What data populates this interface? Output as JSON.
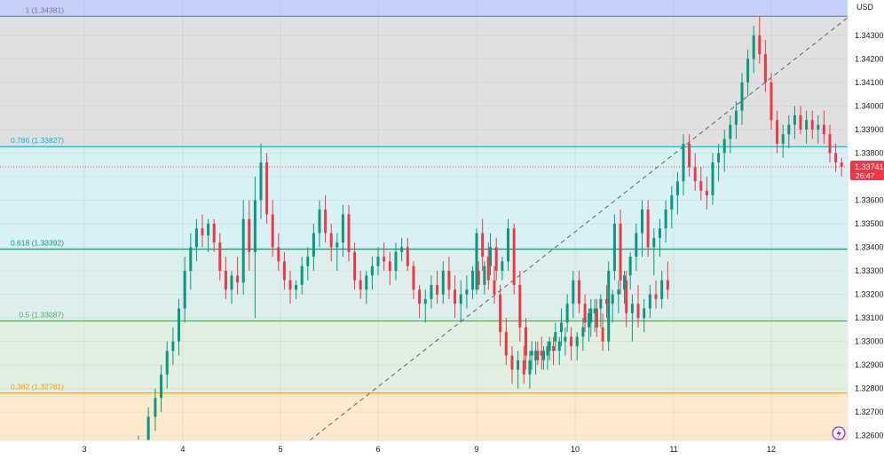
{
  "chart_data": {
    "type": "candlestick",
    "currency_label": "USD",
    "price_axis": {
      "range": [
        1.3258,
        1.3445
      ],
      "ticks": [
        "1.34300",
        "1.34200",
        "1.34100",
        "1.34000",
        "1.33900",
        "1.33800",
        "1.33700",
        "1.33600",
        "1.33500",
        "1.33400",
        "1.33300",
        "1.33200",
        "1.33100",
        "1.33000",
        "1.32900",
        "1.32800",
        "1.32700",
        "1.32600"
      ]
    },
    "time_axis": {
      "ticks": [
        "3",
        "4",
        "5",
        "6",
        "9",
        "10",
        "11",
        "12"
      ]
    },
    "current_price": {
      "value": 1.33741,
      "label": "1.33741",
      "countdown": "26:47",
      "color": "#f23645"
    },
    "fib_levels": [
      {
        "label": "1 (1.34381)",
        "value": 1.34381,
        "line_color": "#787b86",
        "fill": "#e0e0e0"
      },
      {
        "label": "0.786 (1.33827)",
        "value": 1.33827,
        "line_color": "#00bcd4",
        "fill": "#d7f1f5"
      },
      {
        "label": "0.618 (1.33392)",
        "value": 1.33392,
        "line_color": "#089981",
        "fill": "#ddefed"
      },
      {
        "label": "0.5 (1.33087)",
        "value": 1.33087,
        "line_color": "#4caf50",
        "fill": "#e1f0e1"
      },
      {
        "label": "0.382 (1.32781)",
        "value": 1.32781,
        "line_color": "#ff9800",
        "fill": "#fde9cc"
      }
    ],
    "top_band_color": "#c5cff9",
    "trend_line": {
      "from": {
        "day": 5.3,
        "price": 1.3258
      },
      "to": {
        "day": 12.8,
        "price": 1.34381
      }
    },
    "candles": [
      [
        3.55,
        1.3252,
        1.326,
        1.3248,
        1.3258
      ],
      [
        3.65,
        1.3258,
        1.3272,
        1.3255,
        1.3268
      ],
      [
        3.72,
        1.3268,
        1.328,
        1.3262,
        1.3276
      ],
      [
        3.78,
        1.3276,
        1.329,
        1.327,
        1.3286
      ],
      [
        3.84,
        1.3286,
        1.33,
        1.328,
        1.3296
      ],
      [
        3.9,
        1.3296,
        1.3306,
        1.329,
        1.33
      ],
      [
        3.96,
        1.33,
        1.3318,
        1.3294,
        1.3314
      ],
      [
        4.02,
        1.3314,
        1.3336,
        1.3308,
        1.333
      ],
      [
        4.08,
        1.333,
        1.3346,
        1.3322,
        1.334
      ],
      [
        4.14,
        1.334,
        1.3352,
        1.3334,
        1.3348
      ],
      [
        4.2,
        1.3348,
        1.3354,
        1.334,
        1.3345
      ],
      [
        4.26,
        1.3345,
        1.3352,
        1.3338,
        1.335
      ],
      [
        4.32,
        1.335,
        1.3352,
        1.3338,
        1.3342
      ],
      [
        4.38,
        1.3342,
        1.3346,
        1.3326,
        1.333
      ],
      [
        4.44,
        1.333,
        1.3336,
        1.3318,
        1.3322
      ],
      [
        4.5,
        1.3322,
        1.333,
        1.3316,
        1.3328
      ],
      [
        4.56,
        1.3328,
        1.3336,
        1.332,
        1.3325
      ],
      [
        4.62,
        1.3325,
        1.336,
        1.332,
        1.3352
      ],
      [
        4.68,
        1.3352,
        1.336,
        1.333,
        1.3338
      ],
      [
        4.74,
        1.3338,
        1.337,
        1.331,
        1.336
      ],
      [
        4.8,
        1.336,
        1.3384,
        1.3352,
        1.3376
      ],
      [
        4.86,
        1.3376,
        1.338,
        1.335,
        1.3354
      ],
      [
        4.92,
        1.3354,
        1.336,
        1.3336,
        1.334
      ],
      [
        4.98,
        1.334,
        1.3346,
        1.333,
        1.3334
      ],
      [
        5.04,
        1.3334,
        1.3338,
        1.3322,
        1.3326
      ],
      [
        5.1,
        1.3326,
        1.333,
        1.3316,
        1.3322
      ],
      [
        5.16,
        1.3322,
        1.3326,
        1.3318,
        1.3324
      ],
      [
        5.22,
        1.3324,
        1.3336,
        1.332,
        1.3332
      ],
      [
        5.28,
        1.3332,
        1.334,
        1.3326,
        1.3336
      ],
      [
        5.34,
        1.3336,
        1.335,
        1.333,
        1.3346
      ],
      [
        5.4,
        1.3346,
        1.336,
        1.334,
        1.3356
      ],
      [
        5.46,
        1.3356,
        1.3362,
        1.3342,
        1.3346
      ],
      [
        5.52,
        1.3346,
        1.335,
        1.3334,
        1.334
      ],
      [
        5.58,
        1.334,
        1.3346,
        1.333,
        1.3342
      ],
      [
        5.64,
        1.3342,
        1.3358,
        1.3336,
        1.3354
      ],
      [
        5.7,
        1.3354,
        1.3358,
        1.3334,
        1.3338
      ],
      [
        5.76,
        1.3338,
        1.3342,
        1.3322,
        1.3326
      ],
      [
        5.82,
        1.3326,
        1.333,
        1.3318,
        1.3322
      ],
      [
        5.88,
        1.3322,
        1.333,
        1.3316,
        1.3328
      ],
      [
        5.94,
        1.3328,
        1.3336,
        1.3322,
        1.3332
      ],
      [
        6.0,
        1.3332,
        1.334,
        1.3328,
        1.3336
      ],
      [
        6.06,
        1.3336,
        1.3342,
        1.333,
        1.3334
      ],
      [
        6.12,
        1.3334,
        1.3338,
        1.3324,
        1.333
      ],
      [
        6.18,
        1.333,
        1.3342,
        1.3326,
        1.3338
      ],
      [
        6.24,
        1.3338,
        1.3344,
        1.3334,
        1.334
      ],
      [
        6.3,
        1.334,
        1.3344,
        1.333,
        1.3332
      ],
      [
        6.36,
        1.3332,
        1.3334,
        1.3318,
        1.3322
      ],
      [
        6.42,
        1.3322,
        1.3324,
        1.331,
        1.3316
      ],
      [
        6.48,
        1.3316,
        1.3322,
        1.3308,
        1.3318
      ],
      [
        6.54,
        1.3318,
        1.3328,
        1.3314,
        1.3324
      ],
      [
        6.6,
        1.3324,
        1.333,
        1.3316,
        1.332
      ],
      [
        6.66,
        1.332,
        1.3334,
        1.3316,
        1.333
      ],
      [
        6.72,
        1.333,
        1.3336,
        1.3318,
        1.3322
      ],
      [
        6.78,
        1.3322,
        1.3328,
        1.331,
        1.3316
      ],
      [
        6.84,
        1.3316,
        1.3326,
        1.3308,
        1.332
      ],
      [
        6.9,
        1.332,
        1.3328,
        1.3314,
        1.3322
      ],
      [
        6.96,
        1.3322,
        1.3332,
        1.3318,
        1.333
      ],
      [
        7.02,
        1.333,
        1.3334,
        1.3322,
        1.3324
      ],
      [
        7.08,
        1.3324,
        1.3334,
        1.332,
        1.3332
      ],
      [
        7.14,
        1.3332,
        1.3346,
        1.3328,
        1.334
      ],
      [
        7.2,
        1.334,
        1.3344,
        1.3326,
        1.333
      ],
      [
        7.26,
        1.333,
        1.3336,
        1.3326,
        1.3334
      ],
      [
        7.32,
        1.3334,
        1.3352,
        1.333,
        1.3348
      ],
      [
        7.38,
        1.3348,
        1.335,
        1.332,
        1.3324
      ],
      [
        7.44,
        1.3324,
        1.333,
        1.33,
        1.3306
      ],
      [
        7.5,
        1.3306,
        1.331,
        1.3288,
        1.3294
      ],
      [
        7.56,
        1.3294,
        1.33,
        1.3288,
        1.3296
      ],
      [
        7.62,
        1.3296,
        1.33,
        1.329,
        1.3292
      ],
      [
        7.68,
        1.3292,
        1.3298,
        1.3288,
        1.3296
      ],
      [
        7.74,
        1.3296,
        1.3302,
        1.3292,
        1.33
      ],
      [
        7.8,
        1.33,
        1.3308,
        1.3296,
        1.3304
      ],
      [
        7.86,
        1.3304,
        1.3314,
        1.3298,
        1.3308
      ],
      [
        7.92,
        1.3308,
        1.332,
        1.3304,
        1.3316
      ],
      [
        7.98,
        1.3316,
        1.333,
        1.331,
        1.3326
      ],
      [
        8.04,
        1.3326,
        1.333,
        1.3312,
        1.3316
      ],
      [
        8.1,
        1.3316,
        1.332,
        1.3304,
        1.3308
      ],
      [
        8.16,
        1.3308,
        1.3318,
        1.3302,
        1.3314
      ],
      [
        8.22,
        1.3314,
        1.3318,
        1.3302,
        1.3306
      ],
      [
        8.28,
        1.3306,
        1.3312,
        1.3296,
        1.33
      ],
      [
        8.34,
        1.33,
        1.3334,
        1.3296,
        1.333
      ],
      [
        8.4,
        1.333,
        1.3354,
        1.3326,
        1.335
      ],
      [
        8.46,
        1.335,
        1.3356,
        1.332,
        1.3326
      ],
      [
        8.52,
        1.3326,
        1.333,
        1.3306,
        1.3312
      ],
      [
        8.58,
        1.3312,
        1.332,
        1.33,
        1.3316
      ],
      [
        8.64,
        1.3316,
        1.3324,
        1.3306,
        1.331
      ],
      [
        8.7,
        1.331,
        1.3318,
        1.3304,
        1.3314
      ],
      [
        8.76,
        1.3314,
        1.3324,
        1.331,
        1.332
      ],
      [
        8.82,
        1.332,
        1.3326,
        1.3314,
        1.3318
      ],
      [
        8.88,
        1.3318,
        1.333,
        1.3314,
        1.3326
      ],
      [
        8.94,
        1.3326,
        1.3334,
        1.3318,
        1.3322
      ],
      [
        9.0,
        1.3322,
        1.3348,
        1.332,
        1.3346
      ],
      [
        9.06,
        1.3346,
        1.3352,
        1.333,
        1.3336
      ],
      [
        9.12,
        1.3336,
        1.3342,
        1.3322,
        1.3326
      ],
      [
        9.18,
        1.3326,
        1.3332,
        1.3316,
        1.332
      ],
      [
        9.24,
        1.332,
        1.3324,
        1.3298,
        1.3304
      ],
      [
        9.3,
        1.3304,
        1.331,
        1.329,
        1.3294
      ],
      [
        9.36,
        1.3294,
        1.3298,
        1.3282,
        1.3288
      ],
      [
        9.42,
        1.3288,
        1.3296,
        1.328,
        1.3292
      ],
      [
        9.48,
        1.3292,
        1.3298,
        1.3282,
        1.3286
      ],
      [
        9.54,
        1.3286,
        1.3296,
        1.328,
        1.3292
      ],
      [
        9.6,
        1.3292,
        1.33,
        1.3286,
        1.3296
      ],
      [
        9.66,
        1.3296,
        1.3302,
        1.3288,
        1.3294
      ],
      [
        9.72,
        1.3294,
        1.33,
        1.3288,
        1.3298
      ],
      [
        9.78,
        1.3298,
        1.3302,
        1.329,
        1.3296
      ],
      [
        9.84,
        1.3296,
        1.3302,
        1.329,
        1.33
      ],
      [
        9.9,
        1.33,
        1.3306,
        1.3294,
        1.3302
      ],
      [
        9.96,
        1.3302,
        1.3306,
        1.3292,
        1.3298
      ],
      [
        10.02,
        1.3298,
        1.3304,
        1.3292,
        1.3302
      ],
      [
        10.08,
        1.3302,
        1.331,
        1.3296,
        1.3306
      ],
      [
        10.14,
        1.3306,
        1.3314,
        1.33,
        1.3312
      ],
      [
        10.2,
        1.3312,
        1.3318,
        1.3304,
        1.3314
      ],
      [
        10.26,
        1.3314,
        1.332,
        1.3306,
        1.3318
      ],
      [
        10.32,
        1.3318,
        1.3324,
        1.331,
        1.3316
      ],
      [
        10.38,
        1.3316,
        1.3322,
        1.3308,
        1.332
      ],
      [
        10.44,
        1.332,
        1.3326,
        1.3312,
        1.3322
      ],
      [
        10.5,
        1.3322,
        1.333,
        1.3316,
        1.3328
      ],
      [
        10.56,
        1.3328,
        1.3338,
        1.3322,
        1.3336
      ],
      [
        10.62,
        1.3336,
        1.335,
        1.333,
        1.3346
      ],
      [
        10.68,
        1.3346,
        1.336,
        1.3336,
        1.3356
      ],
      [
        10.74,
        1.3356,
        1.336,
        1.3336,
        1.334
      ],
      [
        10.8,
        1.334,
        1.3348,
        1.3328,
        1.3344
      ],
      [
        10.86,
        1.3344,
        1.3352,
        1.3336,
        1.3348
      ],
      [
        10.92,
        1.3348,
        1.336,
        1.3342,
        1.3356
      ],
      [
        10.98,
        1.3356,
        1.3366,
        1.3348,
        1.3362
      ],
      [
        11.04,
        1.3362,
        1.3372,
        1.3354,
        1.3368
      ],
      [
        11.1,
        1.3368,
        1.3388,
        1.3362,
        1.3384
      ],
      [
        11.16,
        1.3384,
        1.3388,
        1.337,
        1.3374
      ],
      [
        11.22,
        1.3374,
        1.338,
        1.3364,
        1.3368
      ],
      [
        11.28,
        1.3368,
        1.3374,
        1.336,
        1.3364
      ],
      [
        11.34,
        1.3364,
        1.337,
        1.3356,
        1.3362
      ],
      [
        11.4,
        1.3362,
        1.338,
        1.3358,
        1.3376
      ],
      [
        11.46,
        1.3376,
        1.3384,
        1.3368,
        1.338
      ],
      [
        11.52,
        1.338,
        1.339,
        1.3372,
        1.3386
      ],
      [
        11.58,
        1.3386,
        1.3396,
        1.338,
        1.3392
      ],
      [
        11.64,
        1.3392,
        1.3402,
        1.3386,
        1.3398
      ],
      [
        11.7,
        1.3398,
        1.3414,
        1.3392,
        1.341
      ],
      [
        11.76,
        1.341,
        1.3424,
        1.3404,
        1.342
      ],
      [
        11.82,
        1.342,
        1.3434,
        1.3414,
        1.343
      ],
      [
        11.88,
        1.343,
        1.3438,
        1.3418,
        1.3422
      ],
      [
        11.94,
        1.3422,
        1.3428,
        1.3406,
        1.341
      ],
      [
        12.0,
        1.341,
        1.3414,
        1.339,
        1.3394
      ],
      [
        12.06,
        1.3394,
        1.3398,
        1.338,
        1.3384
      ],
      [
        12.12,
        1.3384,
        1.3392,
        1.3378,
        1.3388
      ],
      [
        12.18,
        1.3388,
        1.3396,
        1.3382,
        1.3392
      ],
      [
        12.24,
        1.3392,
        1.34,
        1.3386,
        1.3396
      ],
      [
        12.3,
        1.3396,
        1.34,
        1.3388,
        1.339
      ],
      [
        12.36,
        1.339,
        1.3398,
        1.3384,
        1.3394
      ],
      [
        12.42,
        1.3394,
        1.3398,
        1.3386,
        1.339
      ],
      [
        12.48,
        1.339,
        1.3396,
        1.3384,
        1.3392
      ],
      [
        12.54,
        1.3392,
        1.3398,
        1.3384,
        1.3388
      ],
      [
        12.6,
        1.3388,
        1.3392,
        1.3376,
        1.338
      ],
      [
        12.66,
        1.338,
        1.3384,
        1.3372,
        1.3376
      ],
      [
        12.72,
        1.3376,
        1.3378,
        1.337,
        1.33741
      ]
    ]
  }
}
